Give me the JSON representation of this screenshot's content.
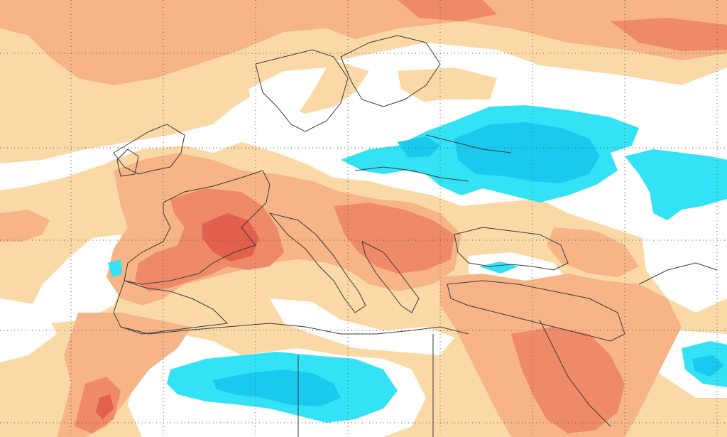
{
  "map": {
    "type": "temperature-anomaly",
    "colors": {
      "background": "#ffffff",
      "warm1": "#fbd9a6",
      "warm2": "#f6b487",
      "warm3": "#ef8a68",
      "warm4": "#e2604c",
      "cold1": "#33e3f5",
      "cold2": "#19c9ee",
      "border": "#3a3a3a",
      "grid": "#555555"
    },
    "grid": true,
    "legend": ""
  }
}
